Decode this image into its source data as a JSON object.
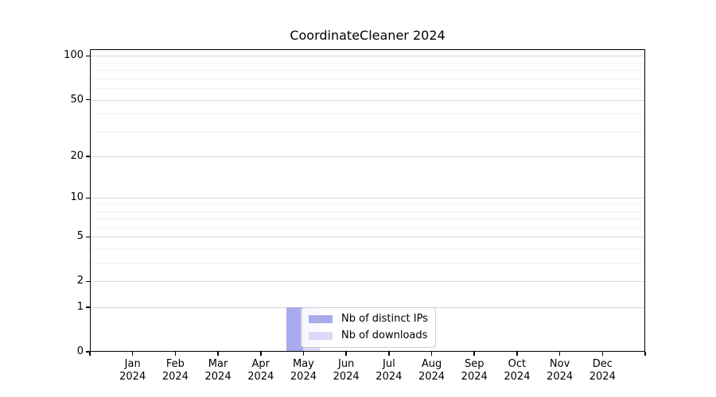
{
  "chart_data": {
    "type": "bar",
    "title": "CoordinateCleaner 2024",
    "x_categories": [
      "Jan",
      "Feb",
      "Mar",
      "Apr",
      "May",
      "Jun",
      "Jul",
      "Aug",
      "Sep",
      "Oct",
      "Nov",
      "Dec"
    ],
    "x_year": "2024",
    "series": [
      {
        "name": "Nb of distinct IPs",
        "color": "#aaaaee",
        "values": [
          0,
          0,
          0,
          0,
          1,
          0,
          0,
          0,
          0,
          0,
          0,
          0
        ]
      },
      {
        "name": "Nb of downloads",
        "color": "#dbdbf7",
        "values": [
          0,
          0,
          0,
          0,
          1,
          0,
          0,
          0,
          0,
          0,
          0,
          0
        ]
      }
    ],
    "y_axis": {
      "scale": "log1p",
      "min": 0,
      "max": 111,
      "major_ticks": [
        0,
        1,
        2,
        5,
        10,
        20,
        50,
        100
      ],
      "minor_gridlines": [
        3,
        4,
        6,
        7,
        8,
        9,
        30,
        40,
        60,
        70,
        80,
        90
      ]
    },
    "legend": {
      "position": "lower center",
      "items": [
        "Nb of distinct IPs",
        "Nb of downloads"
      ]
    },
    "colors": {
      "major_grid": "#d7d7d7",
      "minor_grid": "#f1f1f1",
      "spine": "#000000",
      "background": "#ffffff"
    }
  }
}
